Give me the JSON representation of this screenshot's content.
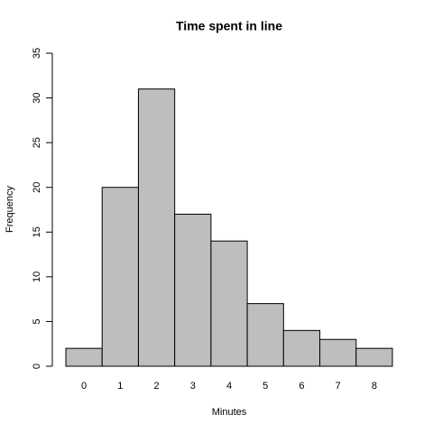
{
  "chart_data": {
    "type": "bar",
    "title": "Time spent in line",
    "x_label": "Minutes",
    "y_label": "Frequency",
    "categories": [
      "0",
      "1",
      "2",
      "3",
      "4",
      "5",
      "6",
      "7",
      "8"
    ],
    "values": [
      2,
      20,
      31,
      17,
      14,
      7,
      4,
      3,
      2
    ],
    "color": "#bebebe",
    "ylim": [
      0,
      35
    ],
    "yticks": [
      0,
      5,
      10,
      15,
      20,
      25,
      30,
      35
    ],
    "grid": false
  }
}
